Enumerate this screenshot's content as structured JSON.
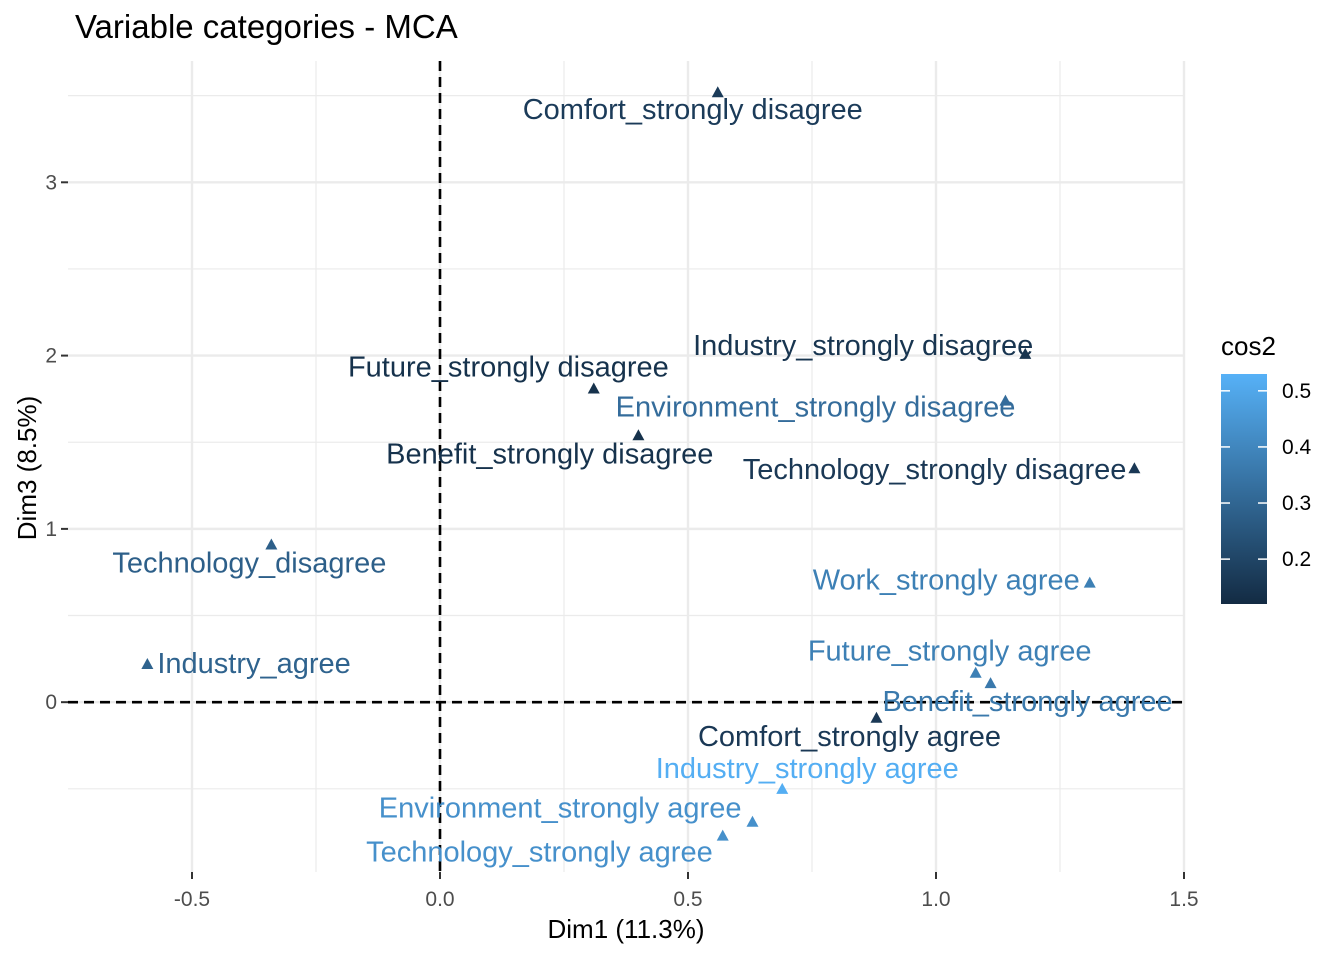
{
  "chart_data": {
    "type": "scatter",
    "title": "Variable categories - MCA",
    "xlabel": "Dim1 (11.3%)",
    "ylabel": "Dim3 (8.5%)",
    "xlim": [
      -0.75,
      1.5
    ],
    "ylim": [
      -0.98,
      3.7
    ],
    "x_ticks": [
      -0.5,
      0.0,
      0.5,
      1.0,
      1.5
    ],
    "x_tick_labels": [
      "-0.5",
      "0.0",
      "0.5",
      "1.0",
      "1.5"
    ],
    "y_ticks": [
      0,
      1,
      2,
      3
    ],
    "y_tick_labels": [
      "0",
      "1",
      "2",
      "3"
    ],
    "grid": true,
    "reference_lines": {
      "x": 0,
      "y": 0,
      "style": "dashed"
    },
    "color_variable": "cos2",
    "color_scale": {
      "low": 0.12,
      "high": 0.53,
      "low_color": "#132b43",
      "high_color": "#56b1f7",
      "legend_ticks": [
        0.2,
        0.3,
        0.4,
        0.5
      ],
      "legend_tick_labels": [
        "0.2",
        "0.3",
        "0.4",
        "0.5"
      ]
    },
    "legend_position": "right",
    "points": [
      {
        "label": "Comfort_strongly disagree",
        "x": 0.56,
        "y": 3.52,
        "cos2": 0.17
      },
      {
        "label": "Industry_strongly disagree",
        "x": 1.18,
        "y": 2.01,
        "cos2": 0.15
      },
      {
        "label": "Future_strongly disagree",
        "x": 0.31,
        "y": 1.81,
        "cos2": 0.14
      },
      {
        "label": "Environment_strongly disagree",
        "x": 1.14,
        "y": 1.74,
        "cos2": 0.32
      },
      {
        "label": "Benefit_strongly disagree",
        "x": 0.4,
        "y": 1.54,
        "cos2": 0.14
      },
      {
        "label": "Technology_strongly disagree",
        "x": 1.4,
        "y": 1.35,
        "cos2": 0.16
      },
      {
        "label": "Technology_disagree",
        "x": -0.34,
        "y": 0.91,
        "cos2": 0.28
      },
      {
        "label": "Work_strongly agree",
        "x": 1.31,
        "y": 0.69,
        "cos2": 0.38
      },
      {
        "label": "Industry_agree",
        "x": -0.59,
        "y": 0.22,
        "cos2": 0.29
      },
      {
        "label": "Future_strongly agree",
        "x": 1.08,
        "y": 0.17,
        "cos2": 0.38
      },
      {
        "label": "Benefit_strongly agree",
        "x": 1.11,
        "y": 0.11,
        "cos2": 0.36
      },
      {
        "label": "Comfort_strongly agree",
        "x": 0.88,
        "y": -0.09,
        "cos2": 0.16
      },
      {
        "label": "Industry_strongly agree",
        "x": 0.69,
        "y": -0.5,
        "cos2": 0.52
      },
      {
        "label": "Environment_strongly agree",
        "x": 0.63,
        "y": -0.69,
        "cos2": 0.43
      },
      {
        "label": "Technology_strongly agree",
        "x": 0.57,
        "y": -0.77,
        "cos2": 0.43
      }
    ]
  }
}
